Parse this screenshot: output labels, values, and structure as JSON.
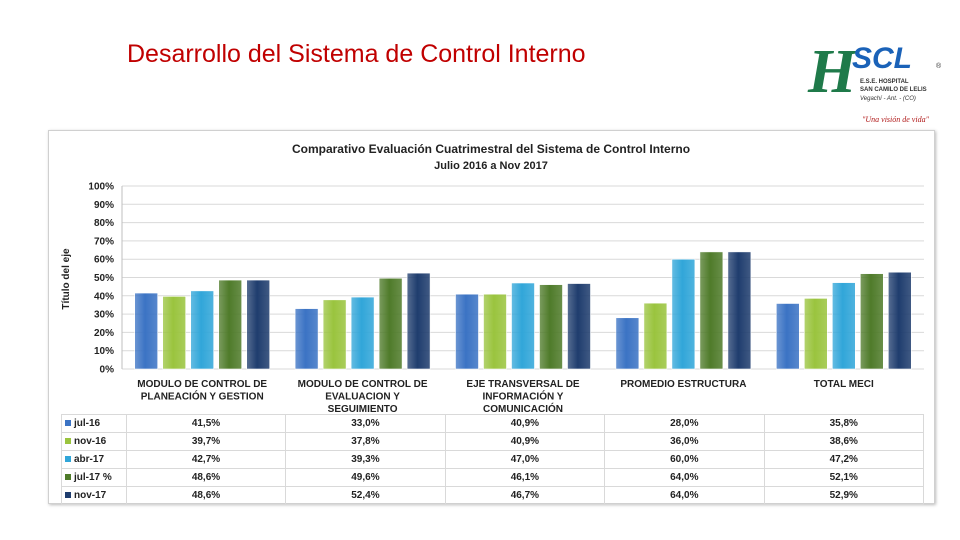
{
  "slide": {
    "title": "Desarrollo del Sistema de Control Interno"
  },
  "logo": {
    "letters": "HSCL",
    "registered": "®",
    "line1": "E.S.E. HOSPITAL",
    "line2": "SAN CAMILO DE LELIS",
    "line3": "Vegachí - Ant. - (CO)",
    "slogan": "\"Una visión de vida\"",
    "colors": {
      "h": "#1f7a4a",
      "scl": "#1a62b8",
      "slogan": "#b01818"
    }
  },
  "chart_data": {
    "type": "bar",
    "title": "Comparativo Evaluación Cuatrimestral del Sistema de Control Interno",
    "subtitle": "Julio 2016  a Nov  2017",
    "ylabel": "Título del eje",
    "ylim": [
      0,
      100
    ],
    "yticks": [
      "0%",
      "10%",
      "20%",
      "30%",
      "40%",
      "50%",
      "60%",
      "70%",
      "80%",
      "90%",
      "100%"
    ],
    "categories": [
      [
        "MODULO DE CONTROL DE",
        "PLANEACIÓN Y GESTION"
      ],
      [
        "MODULO DE CONTROL DE",
        "EVALUACION Y",
        "SEGUIMIENTO"
      ],
      [
        "EJE TRANSVERSAL DE",
        "INFORMACIÓN Y",
        "COMUNICACIÓN"
      ],
      [
        "PROMEDIO ESTRUCTURA"
      ],
      [
        "TOTAL MECI"
      ]
    ],
    "series": [
      {
        "name": "jul-16",
        "color": "#3b73c4",
        "values": [
          41.5,
          33.0,
          40.9,
          28.0,
          35.8
        ],
        "labels": [
          "41,5%",
          "33,0%",
          "40,9%",
          "28,0%",
          "35,8%"
        ]
      },
      {
        "name": "nov-16",
        "color": "#9ac43e",
        "values": [
          39.7,
          37.8,
          40.9,
          36.0,
          38.6
        ],
        "labels": [
          "39,7%",
          "37,8%",
          "40,9%",
          "36,0%",
          "38,6%"
        ]
      },
      {
        "name": "abr-17",
        "color": "#31a6d9",
        "values": [
          42.7,
          39.3,
          47.0,
          60.0,
          47.2
        ],
        "labels": [
          "42,7%",
          "39,3%",
          "47,0%",
          "60,0%",
          "47,2%"
        ]
      },
      {
        "name": "jul-17 %",
        "color": "#4f7b2a",
        "values": [
          48.6,
          49.6,
          46.1,
          64.0,
          52.1
        ],
        "labels": [
          "48,6%",
          "49,6%",
          "46,1%",
          "64,0%",
          "52,1%"
        ]
      },
      {
        "name": "nov-17",
        "color": "#1f3d6e",
        "values": [
          48.6,
          52.4,
          46.7,
          64.0,
          52.9
        ],
        "labels": [
          "48,6%",
          "52,4%",
          "46,7%",
          "64,0%",
          "52,9%"
        ]
      }
    ],
    "grid": true,
    "legend": "table-below"
  }
}
